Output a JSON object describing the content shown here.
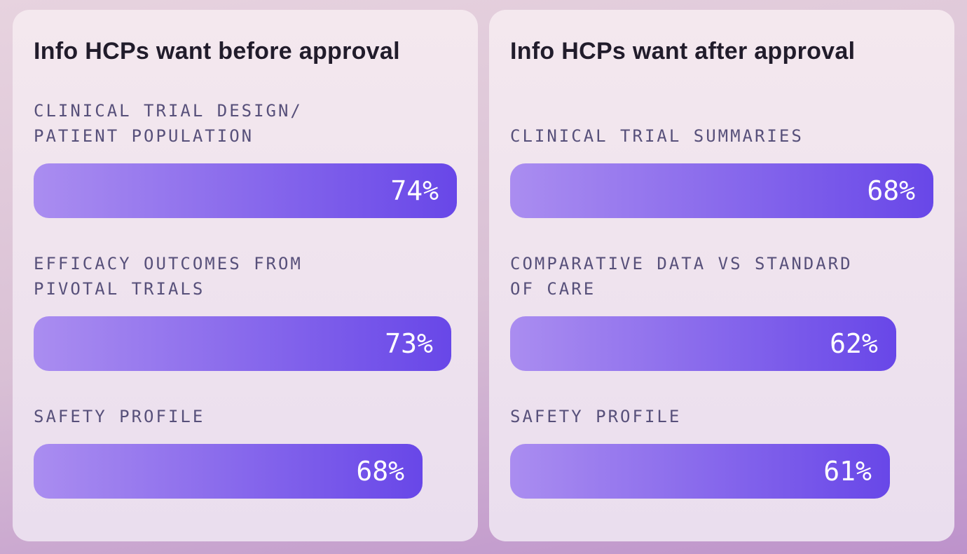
{
  "theme": {
    "page_bg_gradient_from": "#e7d3df",
    "page_bg_gradient_mid": "#d9c0d5",
    "page_bg_gradient_to": "#bd92cb",
    "card_bg_gradient_from": "#f4e8ee",
    "card_bg_gradient_to": "#eadeee",
    "bar_gradient_from": "#aa8df0",
    "bar_gradient_to": "#6847e8",
    "title_color": "#211c2b",
    "label_color": "#57507a",
    "value_color": "#ffffff"
  },
  "cards": [
    {
      "id": "before-approval",
      "title": "Info HCPs want before approval",
      "items": [
        {
          "label": "CLINICAL TRIAL DESIGN/\nPATIENT POPULATION",
          "value": 74,
          "value_label": "74%"
        },
        {
          "label": "EFFICACY OUTCOMES FROM\nPIVOTAL TRIALS",
          "value": 73,
          "value_label": "73%"
        },
        {
          "label": "SAFETY PROFILE",
          "value": 68,
          "value_label": "68%"
        }
      ]
    },
    {
      "id": "after-approval",
      "title": "Info HCPs want after approval",
      "items": [
        {
          "label": "CLINICAL TRIAL SUMMARIES",
          "value": 68,
          "value_label": "68%"
        },
        {
          "label": "COMPARATIVE DATA VS STANDARD\nOF CARE",
          "value": 62,
          "value_label": "62%"
        },
        {
          "label": "SAFETY PROFILE",
          "value": 61,
          "value_label": "61%"
        }
      ]
    }
  ],
  "chart_data": [
    {
      "type": "bar",
      "orientation": "horizontal",
      "title": "Info HCPs want before approval",
      "categories": [
        "CLINICAL TRIAL DESIGN/ PATIENT POPULATION",
        "EFFICACY OUTCOMES FROM PIVOTAL TRIALS",
        "SAFETY PROFILE"
      ],
      "values": [
        74,
        73,
        68
      ],
      "value_labels": [
        "74%",
        "73%",
        "68%"
      ],
      "unit": "percent",
      "xlim": [
        0,
        74
      ],
      "bar_scaling": "bar widths proportional to value, max value fills content width",
      "grid": false,
      "legend": false,
      "axes_visible": false,
      "value_label_position": "inside-right"
    },
    {
      "type": "bar",
      "orientation": "horizontal",
      "title": "Info HCPs want after approval",
      "categories": [
        "CLINICAL TRIAL SUMMARIES",
        "COMPARATIVE DATA VS STANDARD OF CARE",
        "SAFETY PROFILE"
      ],
      "values": [
        68,
        62,
        61
      ],
      "value_labels": [
        "68%",
        "62%",
        "61%"
      ],
      "unit": "percent",
      "xlim": [
        0,
        68
      ],
      "bar_scaling": "bar widths proportional to value, max value fills content width",
      "grid": false,
      "legend": false,
      "axes_visible": false,
      "value_label_position": "inside-right"
    }
  ]
}
